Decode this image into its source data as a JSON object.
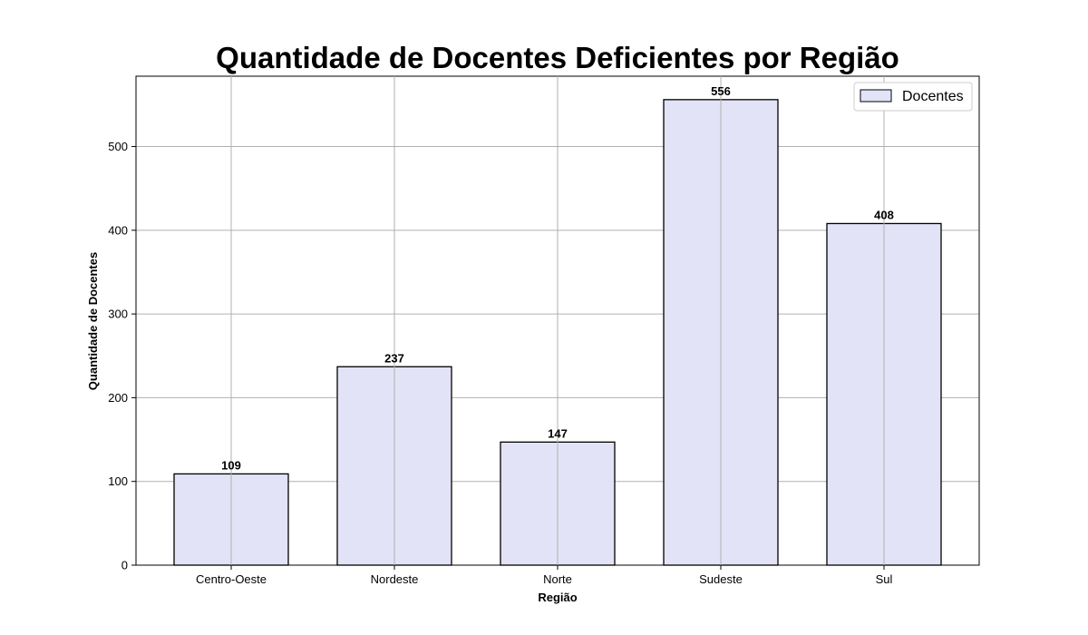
{
  "chart_data": {
    "type": "bar",
    "title": "Quantidade de Docentes Deficientes por Região",
    "xlabel": "Região",
    "ylabel": "Quantidade de Docentes",
    "categories": [
      "Centro-Oeste",
      "Nordeste",
      "Norte",
      "Sudeste",
      "Sul"
    ],
    "series": [
      {
        "name": "Docentes",
        "values": [
          109,
          237,
          147,
          556,
          408
        ]
      }
    ],
    "ylim": [
      0,
      584
    ],
    "yticks": [
      0,
      100,
      200,
      300,
      400,
      500
    ],
    "grid": true,
    "legend_position": "top-right",
    "colors": {
      "bar_fill": "#e3e3f7",
      "bar_edge": "#000000",
      "grid": "#b0b0b0",
      "axes": "#000000"
    }
  }
}
